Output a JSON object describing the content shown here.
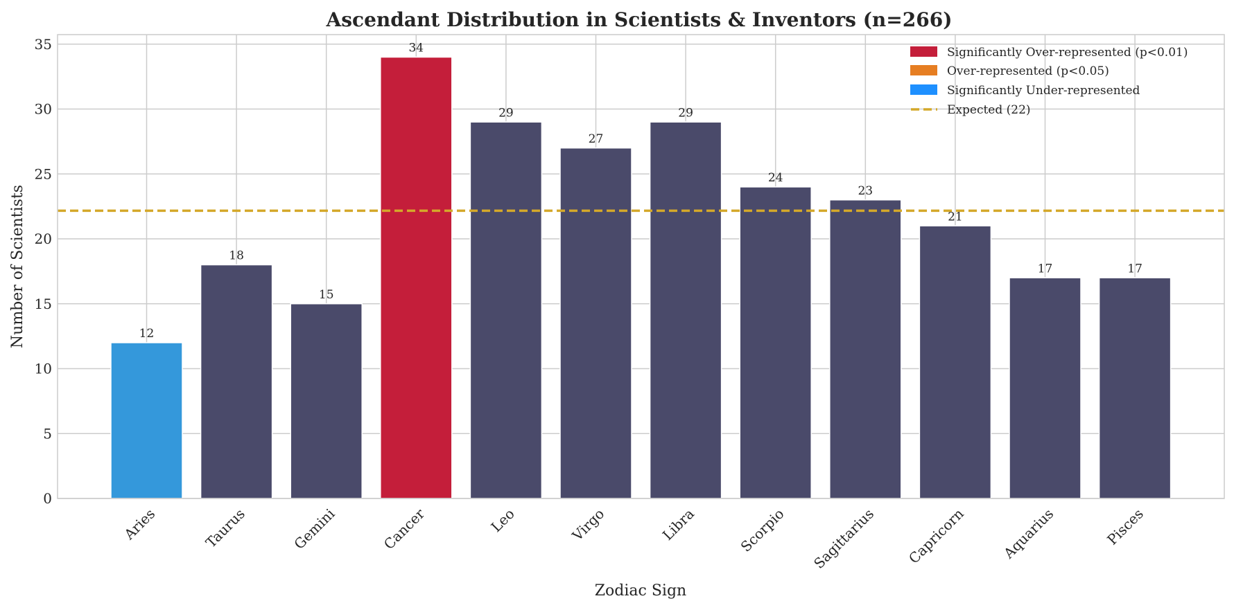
{
  "chart_data": {
    "type": "bar",
    "title": "Ascendant Distribution in Scientists & Inventors (n=266)",
    "xlabel": "Zodiac Sign",
    "ylabel": "Number of Scientists",
    "ylim": [
      0,
      35.7
    ],
    "yticks": [
      0,
      5,
      10,
      15,
      20,
      25,
      30,
      35
    ],
    "grid": true,
    "legend_position": "top-right",
    "categories": [
      "Aries",
      "Taurus",
      "Gemini",
      "Cancer",
      "Leo",
      "Virgo",
      "Libra",
      "Scorpio",
      "Sagittarius",
      "Capricorn",
      "Aquarius",
      "Pisces"
    ],
    "values": [
      12,
      18,
      15,
      34,
      29,
      27,
      29,
      24,
      23,
      21,
      17,
      17
    ],
    "bar_status": [
      "under",
      "normal",
      "normal",
      "sig_over",
      "normal",
      "normal",
      "normal",
      "normal",
      "normal",
      "normal",
      "normal",
      "normal"
    ],
    "expected_value": 22.17,
    "colors": {
      "normal": "#4a4a6a",
      "sig_over": "#c41e3a",
      "over": "#e67e22",
      "under": "#3498db",
      "legend_under": "#1e90ff",
      "expected": "#d4a82a"
    },
    "legend": [
      {
        "label": "Significantly Over-represented (p<0.01)",
        "color": "#c41e3a",
        "kind": "patch"
      },
      {
        "label": "Over-represented (p<0.05)",
        "color": "#e67e22",
        "kind": "patch"
      },
      {
        "label": "Significantly Under-represented",
        "color": "#1e90ff",
        "kind": "patch"
      },
      {
        "label": "Expected (22)",
        "color": "#d4a82a",
        "kind": "dashed-line"
      }
    ]
  }
}
